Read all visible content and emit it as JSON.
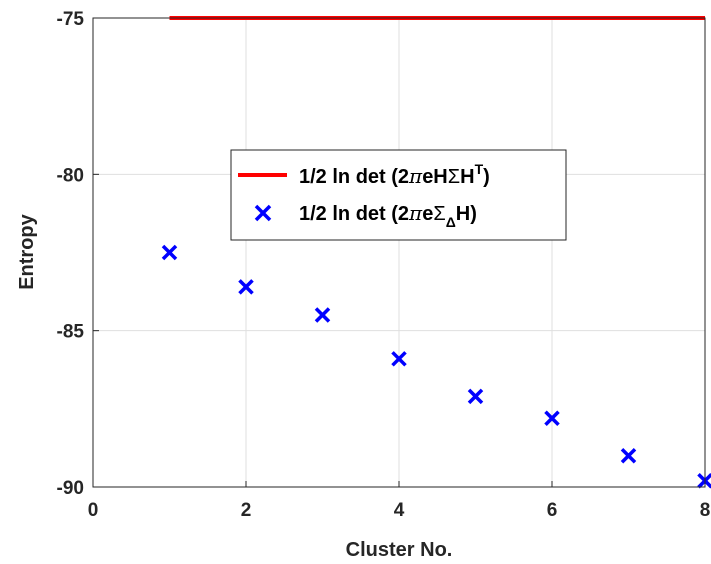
{
  "chart_data": {
    "type": "scatter",
    "xlabel": "Cluster No.",
    "ylabel": "Entropy",
    "xlim": [
      0,
      8
    ],
    "ylim": [
      -90,
      -75
    ],
    "xticks": [
      "0",
      "2",
      "4",
      "6",
      "8"
    ],
    "yticks": [
      "-75",
      "-80",
      "-85",
      "-90"
    ],
    "grid": true,
    "legend_position": "center-right",
    "series": [
      {
        "name": "1/2 ln det (2πeHΣH^T)",
        "type": "line",
        "color": "#ff0000",
        "x": [
          1,
          8
        ],
        "y": [
          -75,
          -75
        ]
      },
      {
        "name": "1/2 ln det (2πeΣ_ΔH)",
        "type": "scatter",
        "marker": "x",
        "color": "#0000ff",
        "x": [
          1,
          2,
          3,
          4,
          5,
          6,
          7,
          8
        ],
        "y": [
          -82.5,
          -83.6,
          -84.5,
          -85.9,
          -87.1,
          -87.8,
          -89.0,
          -89.8
        ]
      }
    ]
  },
  "legend": {
    "line_prefix": "1/2 ln det (2",
    "line_pi": "π",
    "line_mid": "eH",
    "line_sigma": "Σ",
    "line_h": "H",
    "line_sup": "T",
    "line_close": ")",
    "cross_prefix": "1/2 ln det (2",
    "cross_pi": "π",
    "cross_e": "e",
    "cross_sigma": "Σ",
    "cross_sub": "Δ",
    "cross_h": "H)"
  }
}
